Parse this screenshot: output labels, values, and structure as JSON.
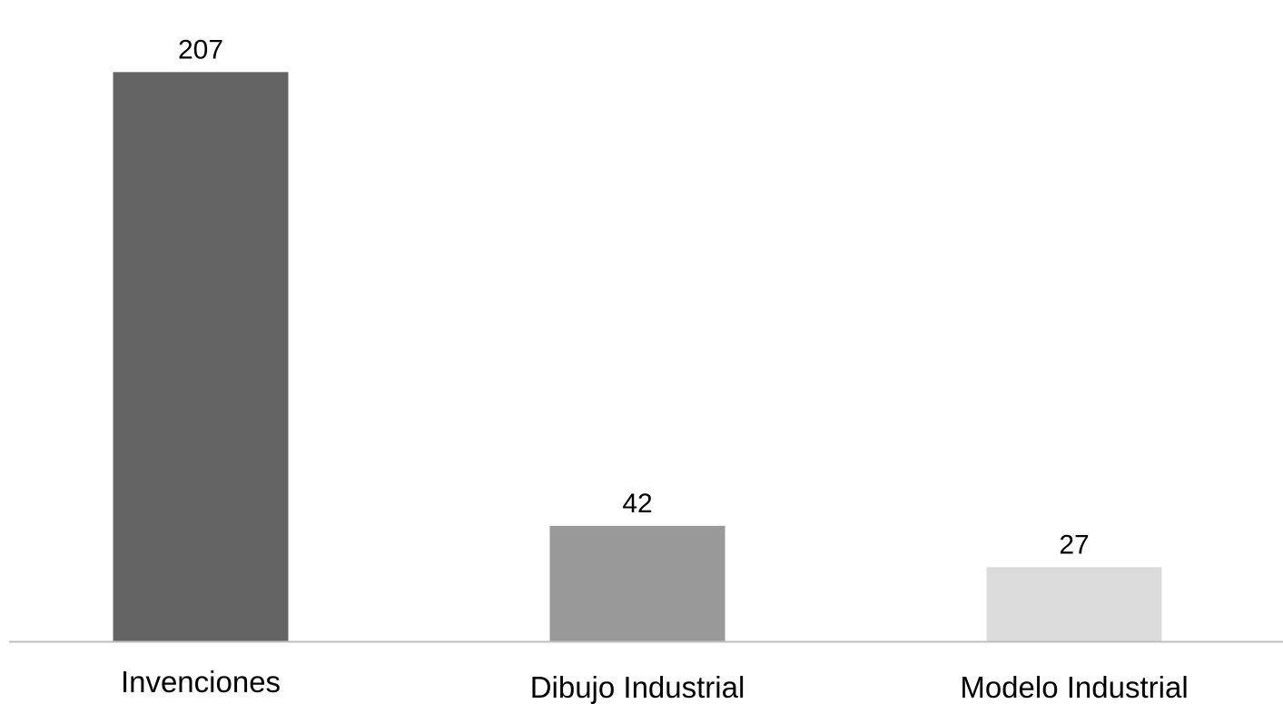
{
  "chart_data": {
    "type": "bar",
    "title": "",
    "xlabel": "",
    "ylabel": "",
    "categories": [
      "Invenciones",
      "Dibujo Industrial",
      "Modelo Industrial"
    ],
    "values": [
      207,
      42,
      27
    ],
    "ylim": [
      0,
      220
    ],
    "bar_colors": [
      "#646464",
      "#999999",
      "#dcdcdc"
    ],
    "axis_color": "#bfbfbf",
    "grid": false,
    "legend": "none",
    "data_labels": true
  }
}
